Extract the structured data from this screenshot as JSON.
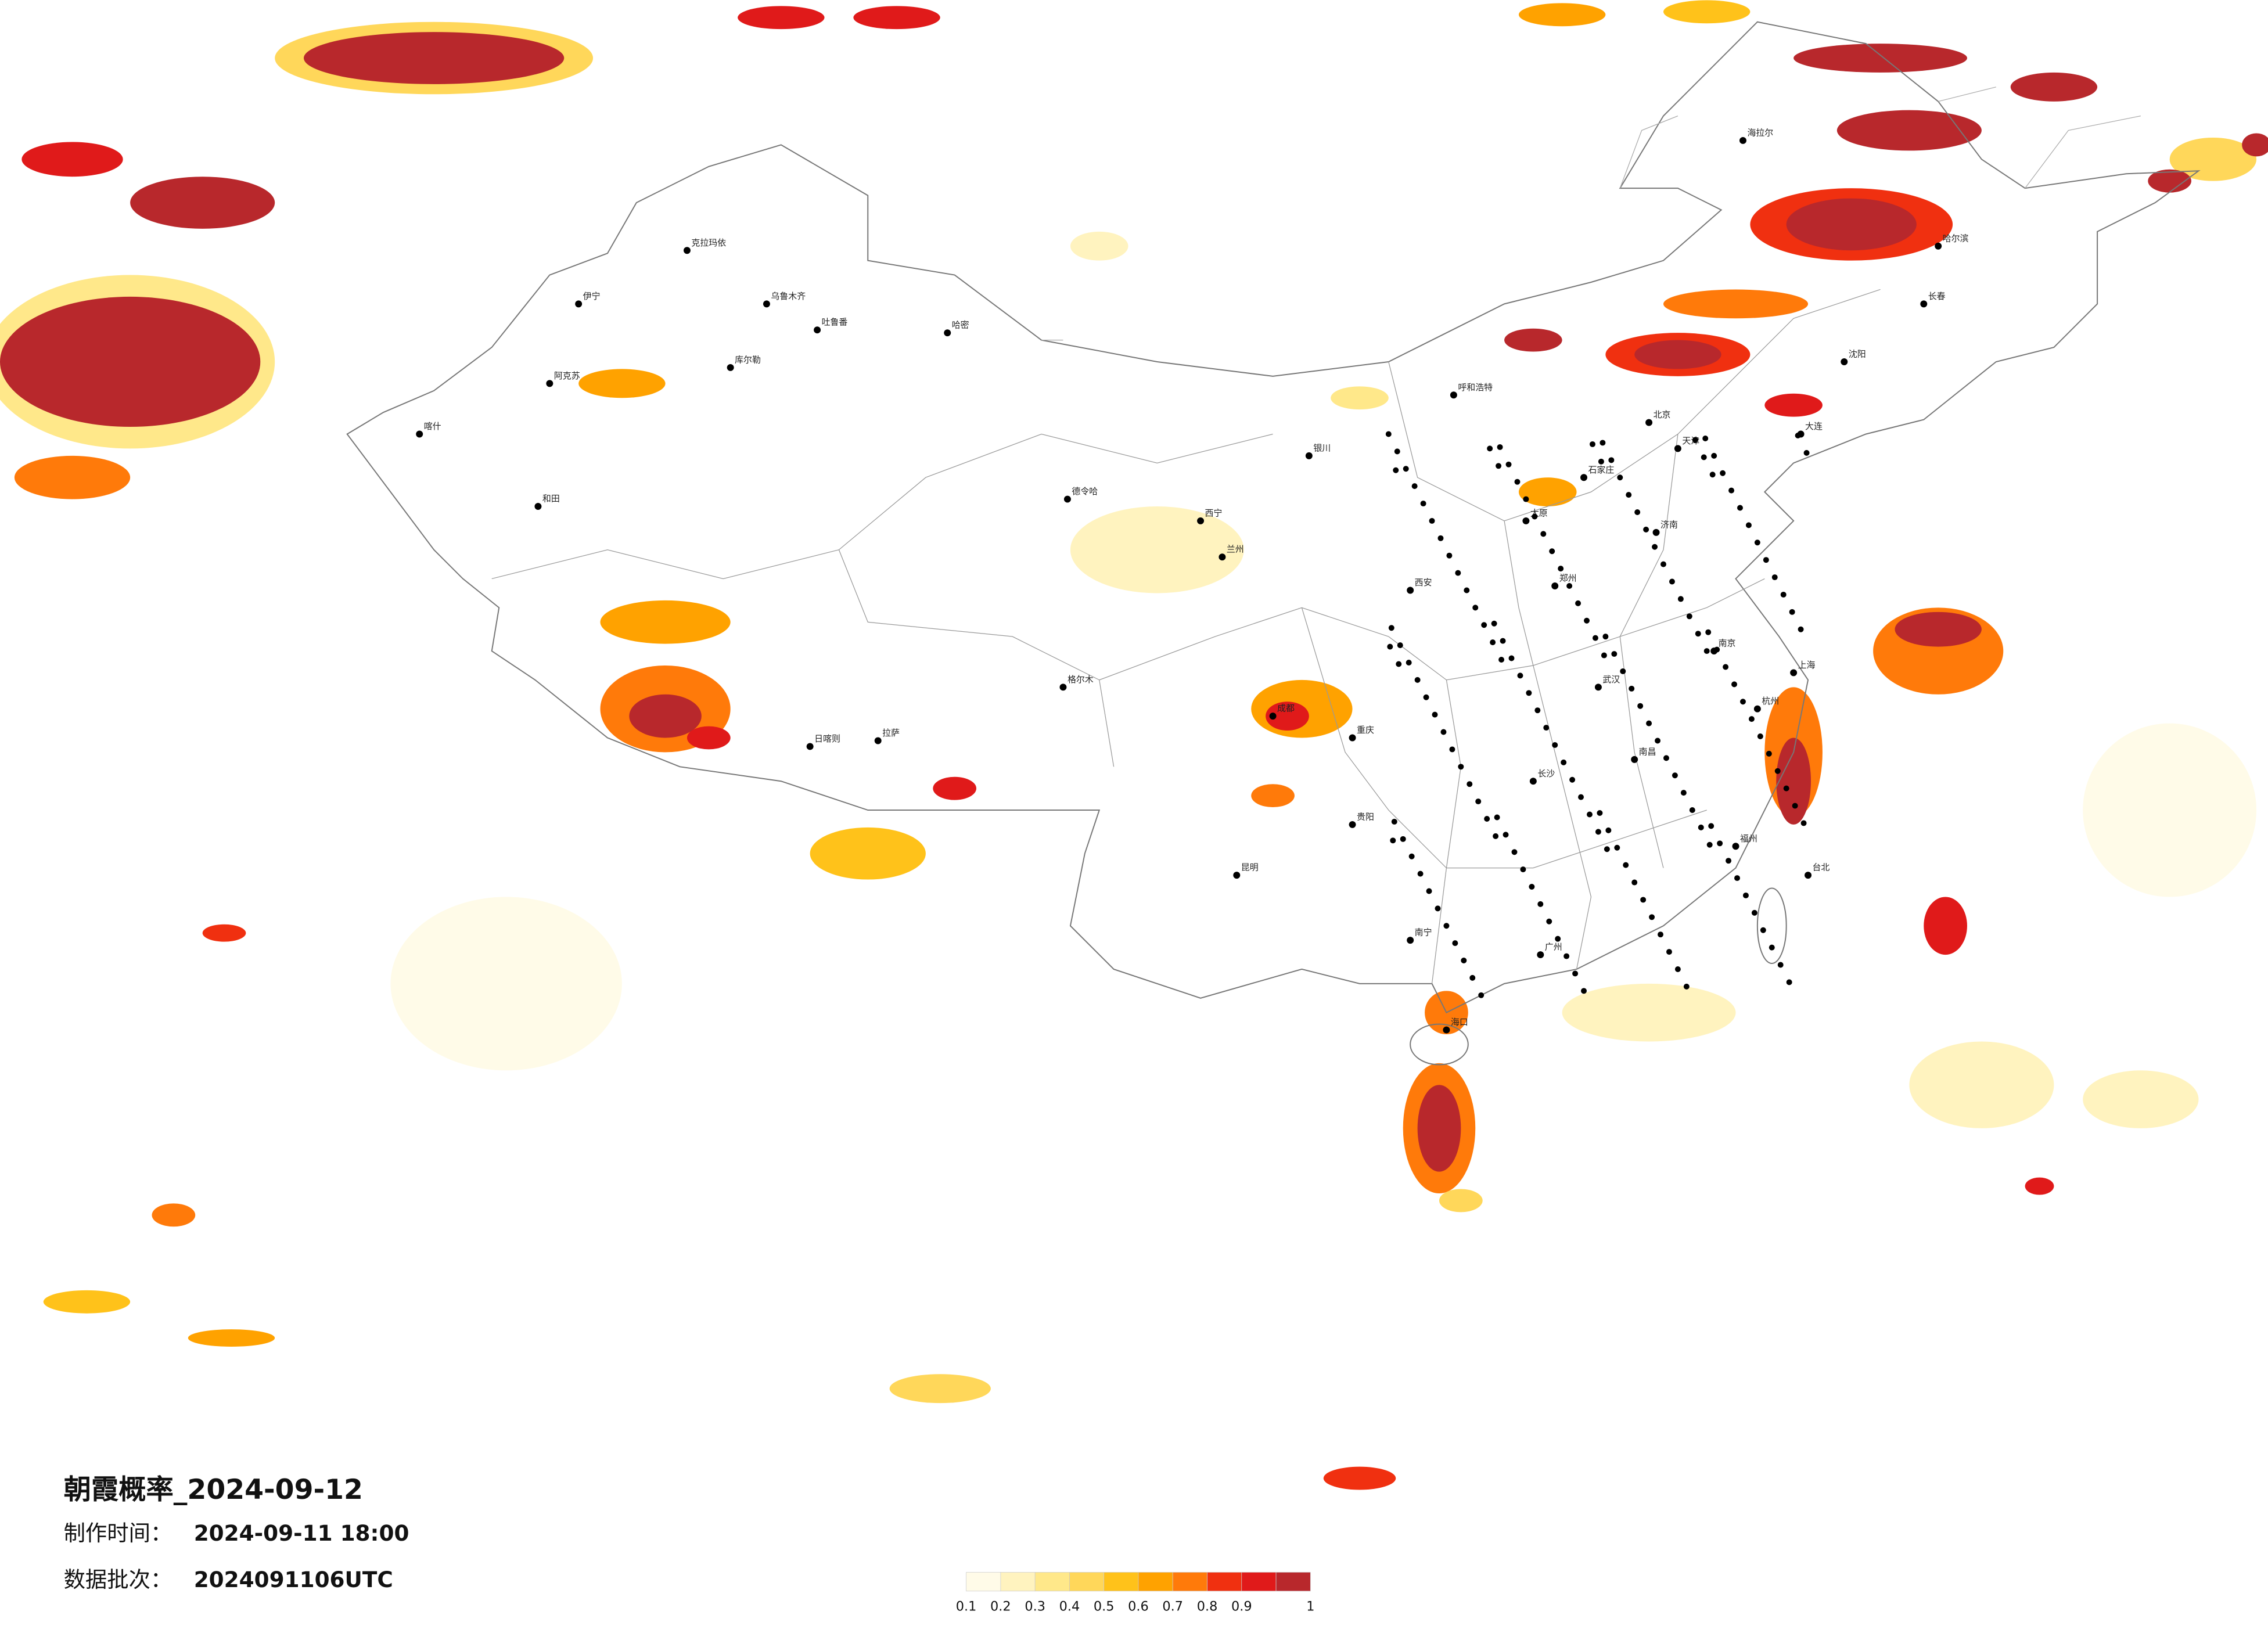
{
  "title": "朝霞概率_2024-09-12",
  "info": [
    {
      "label": "制作时间：",
      "value": "2024-09-11 18:00"
    },
    {
      "label": "数据批次：",
      "value": "2024091106UTC"
    }
  ],
  "legend": {
    "colors": [
      "#fffbe8",
      "#fff3bf",
      "#ffe88a",
      "#ffd75a",
      "#ffc21a",
      "#ffa200",
      "#ff7a0a",
      "#f03010",
      "#e01a1a",
      "#b8282c"
    ],
    "ticks": [
      "0.1",
      "0.2",
      "0.3",
      "0.4",
      "0.5",
      "0.6",
      "0.7",
      "0.8",
      "0.9",
      "1"
    ]
  },
  "cities": [
    "克拉玛依",
    "乌鲁木齐",
    "吐鲁番",
    "哈密",
    "伊宁",
    "阿克苏",
    "喀什",
    "和田",
    "库尔勒",
    "德令哈",
    "格尔木",
    "拉萨",
    "日喀则",
    "西宁",
    "兰州",
    "银川",
    "呼和浩特",
    "北京",
    "天津",
    "石家庄",
    "太原",
    "济南",
    "郑州",
    "西安",
    "成都",
    "重庆",
    "昆明",
    "贵阳",
    "南宁",
    "广州",
    "长沙",
    "武汉",
    "南昌",
    "杭州",
    "上海",
    "南京",
    "福州",
    "台北",
    "海口",
    "哈尔滨",
    "长春",
    "沈阳",
    "海拉尔",
    "大连"
  ]
}
